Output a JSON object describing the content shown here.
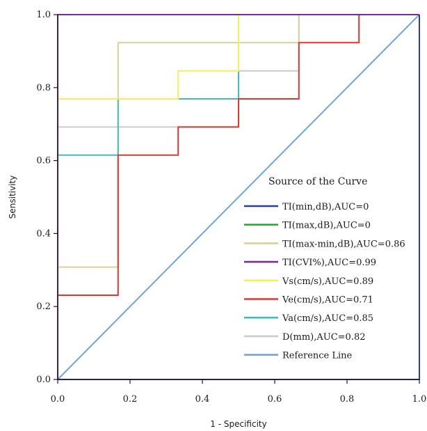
{
  "chart_data": {
    "type": "line",
    "subtype": "step (ROC curves)",
    "xlabel": "1 - Specificity",
    "ylabel": "Sensitivity",
    "xlim": [
      0,
      1
    ],
    "ylim": [
      0,
      1
    ],
    "x_ticks": [
      "0.0",
      "0.2",
      "0.4",
      "0.6",
      "0.8",
      "1.0"
    ],
    "y_ticks": [
      "0.0",
      "0.2",
      "0.4",
      "0.6",
      "0.8",
      "1.0"
    ],
    "grid": false,
    "legend_title": "Source of the Curve",
    "legend_position": "lower-right (inside plot)",
    "series": [
      {
        "name": "TI(min,dB),AUC=0",
        "color": "#2e3f8f",
        "points": [
          [
            0,
            0
          ],
          [
            1,
            0
          ],
          [
            1,
            1
          ]
        ]
      },
      {
        "name": "TI(max,dB),AUC=0",
        "color": "#2ea83a",
        "points": [
          [
            0,
            0
          ],
          [
            1,
            0
          ],
          [
            1,
            1
          ]
        ]
      },
      {
        "name": "TI(max-min,dB),AUC=0.86",
        "color": "#d8d29a",
        "points": [
          [
            0,
            0
          ],
          [
            0,
            0.308
          ],
          [
            0.167,
            0.308
          ],
          [
            0.167,
            0.923
          ],
          [
            0.667,
            0.923
          ],
          [
            0.667,
            1
          ],
          [
            1,
            1
          ]
        ]
      },
      {
        "name": "TI(CVI%),AUC=0.99",
        "color": "#7b2d8e",
        "points": [
          [
            0,
            0
          ],
          [
            0,
            1
          ],
          [
            1,
            1
          ]
        ]
      },
      {
        "name": "Vs(cm/s),AUC=0.89",
        "color": "#f2ef5a",
        "points": [
          [
            0,
            0
          ],
          [
            0,
            0.769
          ],
          [
            0.333,
            0.769
          ],
          [
            0.333,
            0.846
          ],
          [
            0.5,
            0.846
          ],
          [
            0.5,
            1
          ],
          [
            1,
            1
          ]
        ]
      },
      {
        "name": "Ve(cm/s),AUC=0.71",
        "color": "#e8342e",
        "points": [
          [
            0,
            0
          ],
          [
            0,
            0.231
          ],
          [
            0.167,
            0.231
          ],
          [
            0.167,
            0.615
          ],
          [
            0.333,
            0.615
          ],
          [
            0.333,
            0.692
          ],
          [
            0.5,
            0.692
          ],
          [
            0.5,
            0.769
          ],
          [
            0.667,
            0.769
          ],
          [
            0.667,
            0.923
          ],
          [
            0.833,
            0.923
          ],
          [
            0.833,
            1
          ],
          [
            1,
            1
          ]
        ]
      },
      {
        "name": "Va(cm/s),AUC=0.85",
        "color": "#3fbdb8",
        "points": [
          [
            0,
            0
          ],
          [
            0,
            0.615
          ],
          [
            0.167,
            0.615
          ],
          [
            0.167,
            0.769
          ],
          [
            0.5,
            0.769
          ],
          [
            0.5,
            1
          ],
          [
            1,
            1
          ]
        ]
      },
      {
        "name": "D(mm),AUC=0.82",
        "color": "#cccccc",
        "points": [
          [
            0,
            0
          ],
          [
            0,
            0.692
          ],
          [
            0.5,
            0.692
          ],
          [
            0.5,
            0.846
          ],
          [
            0.667,
            0.846
          ],
          [
            0.667,
            1
          ],
          [
            1,
            1
          ]
        ]
      },
      {
        "name": "Reference Line",
        "color": "#6fa6d6",
        "points": [
          [
            0,
            0
          ],
          [
            1,
            1
          ]
        ]
      }
    ]
  }
}
